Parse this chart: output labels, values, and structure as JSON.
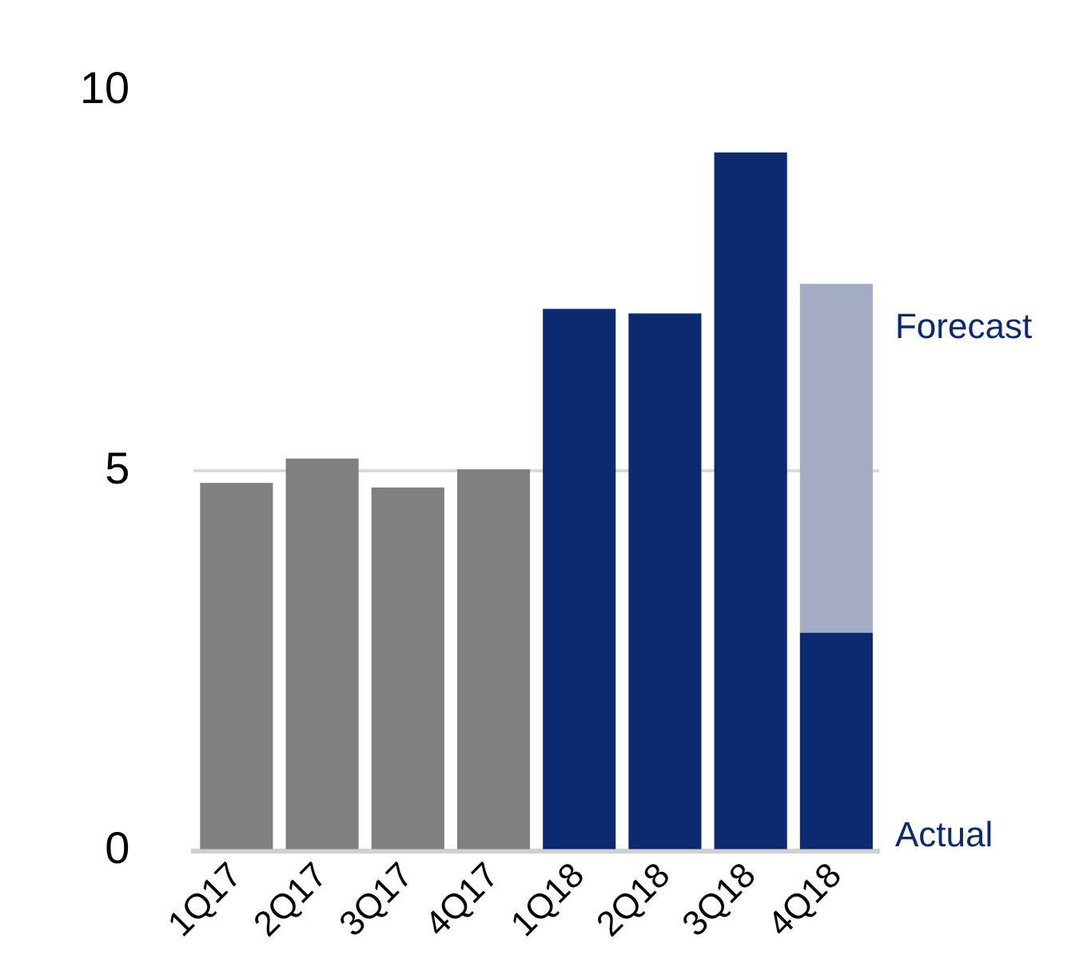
{
  "chart_data": {
    "type": "bar",
    "stacked": true,
    "categories": [
      "1Q17",
      "2Q17",
      "3Q17",
      "4Q17",
      "1Q18",
      "2Q18",
      "3Q18",
      "4Q18"
    ],
    "series": [
      {
        "name": "Actual",
        "colors": [
          "#808080",
          "#808080",
          "#808080",
          "#808080",
          "#0b2a6f",
          "#0b2a6f",
          "#0b2a6f",
          "#0b2a6f"
        ],
        "values": [
          4.84,
          5.16,
          4.78,
          5.02,
          7.13,
          7.07,
          9.19,
          2.87
        ]
      },
      {
        "name": "Forecast",
        "color": "#a3acc2",
        "values": [
          null,
          null,
          null,
          null,
          null,
          null,
          null,
          4.59
        ]
      }
    ],
    "ylim": [
      0,
      10
    ],
    "yticks": [
      0,
      5,
      10
    ],
    "grid": "y",
    "legend": false
  }
}
